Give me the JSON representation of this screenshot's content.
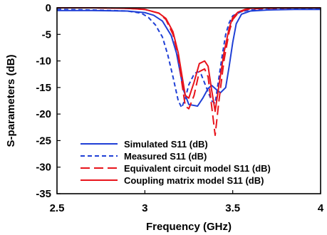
{
  "chart_data": {
    "type": "line",
    "xlabel": "Frequency (GHz)",
    "ylabel": "S-parameters (dB)",
    "xlim": [
      2.5,
      4
    ],
    "ylim": [
      -35,
      0
    ],
    "xticks": [
      2.5,
      3,
      3.5,
      4
    ],
    "yticks": [
      0,
      -5,
      -10,
      -15,
      -20,
      -25,
      -30,
      -35
    ],
    "grid": false,
    "legend": "bottom-center",
    "series": [
      {
        "name": "Simulated S11 (dB)",
        "color": "#1f3fd6",
        "dash": "solid",
        "x": [
          2.5,
          2.7,
          2.9,
          3.0,
          3.05,
          3.1,
          3.15,
          3.18,
          3.2,
          3.22,
          3.25,
          3.3,
          3.33,
          3.36,
          3.38,
          3.4,
          3.43,
          3.46,
          3.48,
          3.5,
          3.52,
          3.55,
          3.6,
          3.7,
          3.85,
          4.0
        ],
        "y": [
          -0.5,
          -0.5,
          -0.6,
          -0.9,
          -1.4,
          -2.5,
          -5.2,
          -8.5,
          -12.0,
          -15.5,
          -18.2,
          -18.5,
          -17.0,
          -15.2,
          -14.6,
          -15.2,
          -16.0,
          -15.0,
          -11.0,
          -6.5,
          -3.0,
          -1.2,
          -0.6,
          -0.4,
          -0.3,
          -0.3
        ]
      },
      {
        "name": "Measured S11 (dB)",
        "color": "#1f3fd6",
        "dash": "dashed",
        "x": [
          2.5,
          2.7,
          2.9,
          2.98,
          3.02,
          3.06,
          3.1,
          3.13,
          3.16,
          3.19,
          3.21,
          3.23,
          3.25,
          3.28,
          3.3,
          3.32,
          3.35,
          3.38,
          3.4,
          3.42,
          3.44,
          3.46,
          3.48,
          3.5,
          3.55,
          3.6,
          3.7,
          3.85,
          4.0
        ],
        "y": [
          -0.3,
          -0.4,
          -0.6,
          -1.0,
          -1.8,
          -3.2,
          -5.5,
          -8.8,
          -13.0,
          -17.5,
          -18.8,
          -17.0,
          -14.5,
          -12.5,
          -12.0,
          -12.5,
          -15.0,
          -17.5,
          -18.0,
          -13.5,
          -9.0,
          -5.0,
          -2.8,
          -1.5,
          -0.7,
          -0.4,
          -0.3,
          -0.2,
          -0.2
        ]
      },
      {
        "name": "Equivalent circuit model S11 (dB)",
        "color": "#e8141c",
        "dash": "longdash",
        "x": [
          2.5,
          2.7,
          2.9,
          3.0,
          3.08,
          3.12,
          3.16,
          3.19,
          3.21,
          3.23,
          3.25,
          3.28,
          3.31,
          3.34,
          3.36,
          3.38,
          3.4,
          3.42,
          3.45,
          3.48,
          3.5,
          3.53,
          3.57,
          3.6,
          3.7,
          3.85,
          4.0
        ],
        "y": [
          0,
          0,
          -0.1,
          -0.3,
          -1.0,
          -2.2,
          -5.0,
          -9.0,
          -14.0,
          -18.5,
          -19.0,
          -16.5,
          -12.0,
          -11.5,
          -13.0,
          -18.5,
          -24.0,
          -18.0,
          -10.0,
          -4.5,
          -2.2,
          -1.0,
          -0.4,
          -0.2,
          -0.1,
          0,
          0
        ]
      },
      {
        "name": "Coupling matrix model S11 (dB)",
        "color": "#e8141c",
        "dash": "solid",
        "x": [
          2.5,
          2.7,
          2.9,
          3.0,
          3.08,
          3.12,
          3.16,
          3.19,
          3.21,
          3.23,
          3.25,
          3.28,
          3.31,
          3.34,
          3.36,
          3.38,
          3.4,
          3.42,
          3.45,
          3.48,
          3.5,
          3.53,
          3.57,
          3.6,
          3.7,
          3.85,
          4.0
        ],
        "y": [
          0,
          0,
          -0.1,
          -0.3,
          -1.0,
          -2.0,
          -4.5,
          -8.5,
          -12.5,
          -16.5,
          -17.0,
          -14.0,
          -10.5,
          -10.0,
          -11.0,
          -15.5,
          -19.5,
          -15.0,
          -8.5,
          -3.8,
          -1.8,
          -0.8,
          -0.3,
          -0.1,
          0,
          0,
          0
        ]
      }
    ]
  }
}
